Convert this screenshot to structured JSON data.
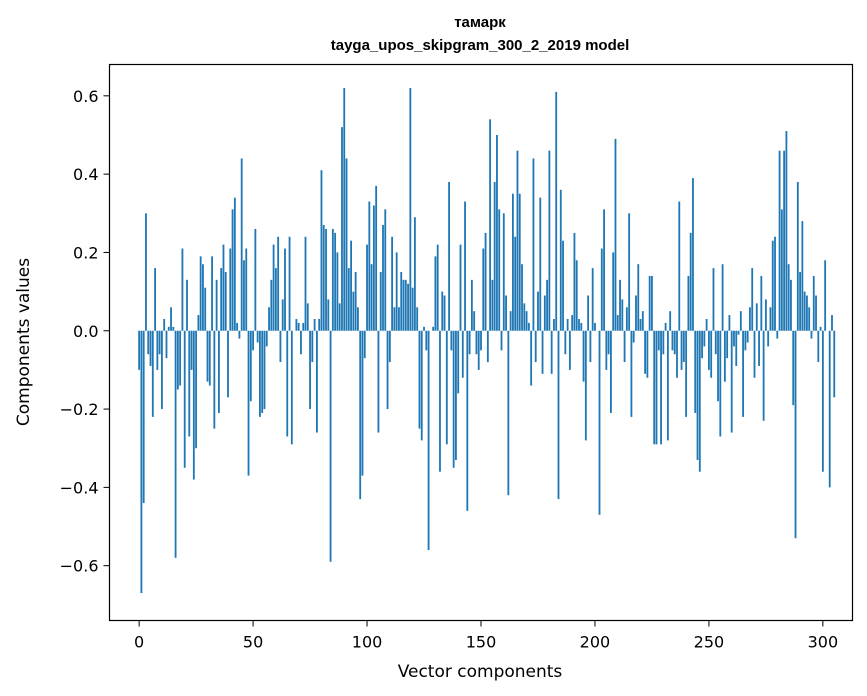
{
  "chart_data": {
    "type": "bar",
    "title": "тамарк",
    "subtitle": "tayga_upos_skipgram_300_2_2019 model",
    "xlabel": "Vector components",
    "ylabel": "Components values",
    "xlim": [
      -13,
      313
    ],
    "ylim": [
      -0.74,
      0.68
    ],
    "x_ticks": [
      0,
      50,
      100,
      150,
      200,
      250,
      300
    ],
    "x_tick_labels": [
      "0",
      "50",
      "100",
      "150",
      "200",
      "250",
      "300"
    ],
    "y_ticks": [
      -0.6,
      -0.4,
      -0.2,
      0.0,
      0.2,
      0.4,
      0.6
    ],
    "y_tick_labels": [
      "−0.6",
      "−0.4",
      "−0.2",
      "0.0",
      "0.2",
      "0.4",
      "0.6"
    ],
    "bar_color": "#1f77b4",
    "grid": false,
    "values": [
      -0.1,
      -0.67,
      -0.44,
      0.3,
      -0.06,
      -0.09,
      -0.22,
      0.16,
      -0.1,
      -0.06,
      -0.2,
      0.03,
      -0.07,
      0.01,
      0.06,
      0.01,
      -0.58,
      -0.15,
      -0.14,
      0.21,
      -0.35,
      0.13,
      -0.27,
      -0.1,
      -0.38,
      -0.3,
      0.04,
      0.19,
      0.17,
      0.11,
      -0.13,
      -0.14,
      0.19,
      -0.25,
      0.13,
      -0.21,
      0.16,
      0.22,
      0.15,
      -0.17,
      0.21,
      0.31,
      0.34,
      0.02,
      -0.02,
      0.44,
      0.18,
      0.21,
      -0.37,
      -0.18,
      -0.05,
      0.26,
      -0.03,
      -0.22,
      -0.21,
      -0.2,
      -0.04,
      0.06,
      0.13,
      0.22,
      0.16,
      0.24,
      -0.08,
      0.08,
      0.21,
      -0.27,
      0.24,
      -0.29,
      0.0,
      0.03,
      0.02,
      -0.06,
      0.02,
      0.24,
      0.07,
      -0.2,
      -0.08,
      0.03,
      -0.26,
      0.03,
      0.41,
      0.27,
      0.26,
      0.08,
      -0.59,
      0.26,
      0.25,
      0.2,
      0.07,
      0.52,
      0.62,
      0.44,
      0.16,
      0.23,
      0.1,
      0.15,
      0.06,
      -0.43,
      -0.37,
      -0.07,
      0.22,
      0.33,
      0.17,
      0.32,
      0.37,
      -0.26,
      0.15,
      0.27,
      0.31,
      -0.2,
      -0.08,
      0.24,
      0.06,
      0.2,
      0.06,
      0.15,
      0.13,
      0.13,
      0.12,
      0.62,
      0.11,
      0.29,
      0.06,
      -0.25,
      -0.28,
      0.01,
      -0.05,
      -0.56,
      0.0,
      0.01,
      0.19,
      0.22,
      -0.36,
      0.1,
      0.09,
      -0.29,
      0.38,
      -0.05,
      -0.35,
      -0.33,
      -0.16,
      0.22,
      -0.12,
      0.33,
      -0.46,
      -0.06,
      0.13,
      0.05,
      -0.06,
      -0.1,
      -0.05,
      0.21,
      0.25,
      -0.08,
      0.54,
      0.13,
      0.38,
      0.5,
      0.31,
      -0.05,
      0.3,
      0.09,
      -0.42,
      0.05,
      0.35,
      0.24,
      0.46,
      0.35,
      0.17,
      0.07,
      0.05,
      0.02,
      -0.14,
      0.44,
      -0.08,
      0.1,
      0.34,
      -0.11,
      0.09,
      0.13,
      0.46,
      -0.11,
      0.03,
      0.61,
      -0.43,
      0.36,
      0.23,
      -0.06,
      0.03,
      -0.1,
      0.04,
      0.25,
      0.18,
      0.03,
      0.02,
      -0.13,
      -0.28,
      0.09,
      -0.08,
      0.16,
      0.02,
      0.0,
      -0.47,
      0.21,
      0.31,
      -0.1,
      -0.06,
      -0.21,
      0.2,
      0.49,
      0.04,
      0.13,
      0.08,
      -0.08,
      0.06,
      0.3,
      -0.22,
      -0.03,
      0.09,
      0.17,
      0.03,
      0.05,
      -0.11,
      -0.12,
      0.14,
      0.14,
      -0.29,
      -0.29,
      -0.05,
      -0.29,
      -0.06,
      0.02,
      -0.28,
      0.05,
      -0.05,
      -0.06,
      -0.12,
      0.33,
      -0.1,
      -0.08,
      -0.22,
      0.14,
      0.25,
      0.39,
      -0.21,
      -0.33,
      -0.36,
      -0.07,
      -0.04,
      0.03,
      -0.1,
      -0.12,
      0.16,
      -0.06,
      -0.18,
      -0.27,
      0.17,
      -0.13,
      -0.07,
      0.04,
      -0.26,
      -0.04,
      -0.09,
      -0.01,
      0.05,
      -0.22,
      -0.05,
      -0.03,
      0.06,
      0.16,
      -0.12,
      0.07,
      -0.09,
      0.14,
      -0.23,
      0.08,
      -0.04,
      0.06,
      0.23,
      0.24,
      -0.02,
      0.46,
      0.31,
      0.46,
      0.51,
      0.17,
      0.13,
      -0.19,
      -0.53,
      0.38,
      0.15,
      0.28,
      0.1,
      0.09,
      0.06,
      -0.02,
      0.14,
      0.09,
      -0.08,
      0.01,
      -0.36,
      0.18,
      0.0,
      -0.4,
      0.04,
      -0.17
    ]
  }
}
